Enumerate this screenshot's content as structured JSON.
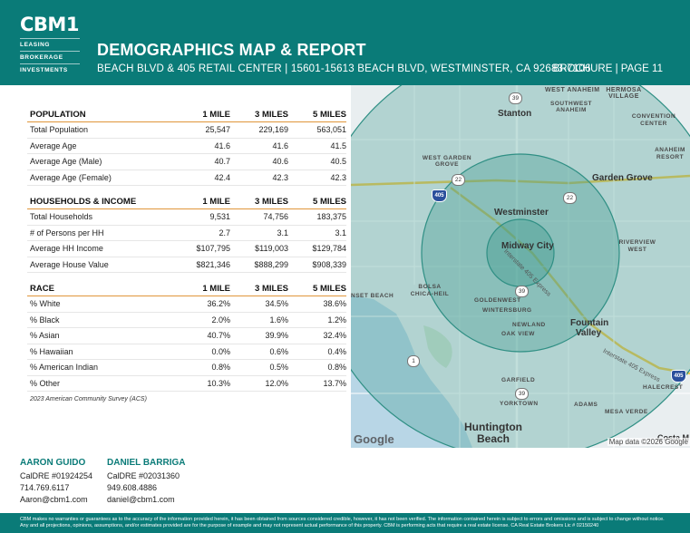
{
  "brand": {
    "name": "CBM1",
    "lines": [
      "LEASING",
      "BROKERAGE",
      "INVESTMENTS"
    ]
  },
  "header": {
    "title": "DEMOGRAPHICS MAP & REPORT",
    "subtitle": "BEACH BLVD & 405 RETAIL CENTER | 15601-15613 BEACH BLVD, WESTMINSTER, CA 92683-7106",
    "page_ref": "BROCHURE | PAGE 11"
  },
  "tables": [
    {
      "headers": [
        "POPULATION",
        "1 MILE",
        "3 MILES",
        "5 MILES"
      ],
      "rows": [
        [
          "Total Population",
          "25,547",
          "229,169",
          "563,051"
        ],
        [
          "Average Age",
          "41.6",
          "41.6",
          "41.5"
        ],
        [
          "Average Age (Male)",
          "40.7",
          "40.6",
          "40.5"
        ],
        [
          "Average Age (Female)",
          "42.4",
          "42.3",
          "42.3"
        ]
      ]
    },
    {
      "headers": [
        "HOUSEHOLDS & INCOME",
        "1 MILE",
        "3 MILES",
        "5 MILES"
      ],
      "rows": [
        [
          "Total Households",
          "9,531",
          "74,756",
          "183,375"
        ],
        [
          "# of Persons per HH",
          "2.7",
          "3.1",
          "3.1"
        ],
        [
          "Average HH Income",
          "$107,795",
          "$119,003",
          "$129,784"
        ],
        [
          "Average House Value",
          "$821,346",
          "$888,299",
          "$908,339"
        ]
      ]
    },
    {
      "headers": [
        "RACE",
        "1 MILE",
        "3 MILES",
        "5 MILES"
      ],
      "rows": [
        [
          "% White",
          "36.2%",
          "34.5%",
          "38.6%"
        ],
        [
          "% Black",
          "2.0%",
          "1.6%",
          "1.2%"
        ],
        [
          "% Asian",
          "40.7%",
          "39.9%",
          "32.4%"
        ],
        [
          "% Hawaiian",
          "0.0%",
          "0.6%",
          "0.4%"
        ],
        [
          "% American Indian",
          "0.8%",
          "0.5%",
          "0.8%"
        ],
        [
          "% Other",
          "10.3%",
          "12.0%",
          "13.7%"
        ]
      ]
    }
  ],
  "source_note": "2023 American Community Survey (ACS)",
  "map": {
    "labels": {
      "west_anaheim": "WEST ANAHEIM",
      "hermosa_village": "HERMOSA VILLAGE",
      "stanton": "Stanton",
      "southwest_anaheim": "SOUTHWEST ANAHEIM",
      "convention_center": "CONVENTION CENTER",
      "anaheim_resort": "ANAHEIM RESORT",
      "west_garden_grove": "WEST GARDEN GROVE",
      "garden_grove": "Garden Grove",
      "westminster": "Westminster",
      "riverview_west": "RIVERVIEW WEST",
      "midway_city": "Midway City",
      "bolsa_chica_heil": "BOLSA CHICA-HEIL",
      "sunset_beach": "NSET BEACH",
      "goldenwest": "GOLDENWEST",
      "wintersburg": "WINTERSBURG",
      "newland": "NEWLAND",
      "oak_view": "OAK VIEW",
      "fountain_valley": "Fountain Valley",
      "halecrest": "HALECREST",
      "garfield": "GARFIELD",
      "yorktown": "YORKTOWN",
      "adams": "ADAMS",
      "mesa_verde": "MESA VERDE",
      "huntington_beach": "Huntington Beach",
      "costa_mesa": "Costa M",
      "interstate_405": "Interstate 405 Express",
      "interstate_405_b": "Interstate 405 Express"
    },
    "shields": {
      "hwy39_top": "39",
      "hwy22_left": "22",
      "hwy22_right": "22",
      "i405_left": "405",
      "hwy39_mid": "39",
      "hwy1": "1",
      "hwy39_bottom": "39",
      "i405_right": "405"
    },
    "google": "Google",
    "attribution": "Map data ©2026 Google",
    "colors": {
      "ring": "#2f8f84",
      "ring_fill": "#3e9c8e",
      "water": "#b8d6e6",
      "land": "#e9eef0"
    }
  },
  "contacts": [
    {
      "name": "AARON GUIDO",
      "license": "CalDRE #01924254",
      "phone": "714.769.6117",
      "email": "Aaron@cbm1.com"
    },
    {
      "name": "DANIEL BARRIGA",
      "license": "CalDRE #02031360",
      "phone": "949.608.4886",
      "email": "daniel@cbm1.com"
    }
  ],
  "disclaimer": "CBM makes no warranties or guarantees as to the accuracy of the information provided herein, it has been obtained from sources considered credible, however, it has not been verified. The information contained herein is subject to errors and omissions and is subject to change without notice. Any and all projections, opinions, assumptions, and/or estimates provided are for the purpose of example and may not represent actual performance of this property. CBM is performing acts that require a real estate license. CA Real Estate Brokers Lic # 02150240"
}
